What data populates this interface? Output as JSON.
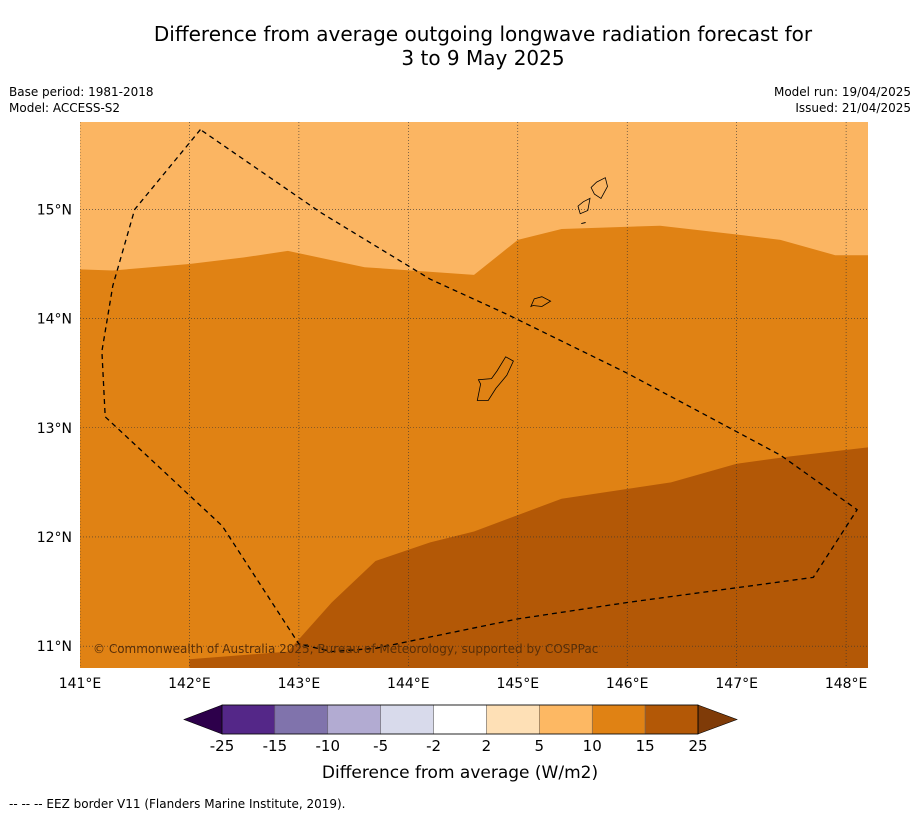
{
  "title_line1": "Difference from average outgoing longwave radiation forecast for",
  "title_line2": "3 to 9 May 2025",
  "meta_left": {
    "base_period": "Base period: 1981-2018",
    "model": "Model: ACCESS-S2"
  },
  "meta_right": {
    "model_run": "Model run: 19/04/2025",
    "issued": "Issued: 21/04/2025"
  },
  "map": {
    "lon_range": [
      141,
      148.2
    ],
    "lat_range": [
      10.8,
      15.8
    ],
    "lon_ticks": [
      141,
      142,
      143,
      144,
      145,
      146,
      147,
      148
    ],
    "lat_ticks": [
      11,
      12,
      13,
      14,
      15
    ],
    "lon_labels": [
      "141°E",
      "142°E",
      "143°E",
      "144°E",
      "145°E",
      "146°E",
      "147°E",
      "148°E"
    ],
    "lat_labels": [
      "11°N",
      "12°N",
      "13°N",
      "14°N",
      "15°N"
    ],
    "grid": true,
    "copyright": "© Commonwealth of Australia 2025, Bureau of Meteorology, supported by COSPPac",
    "fill_colors": {
      "5_to_10": "#fbb562",
      "10_to_15": "#e08214",
      "15_to_25": "#b35806"
    },
    "boundary_5_10": [
      [
        141,
        14.45
      ],
      [
        141.3,
        14.44
      ],
      [
        142,
        14.5
      ],
      [
        142.5,
        14.56
      ],
      [
        142.9,
        14.62
      ],
      [
        143.6,
        14.47
      ],
      [
        144.6,
        14.4
      ],
      [
        145,
        14.72
      ],
      [
        145.4,
        14.82
      ],
      [
        146.3,
        14.85
      ],
      [
        147,
        14.77
      ],
      [
        147.4,
        14.72
      ],
      [
        147.9,
        14.58
      ],
      [
        148.2,
        14.58
      ]
    ],
    "boundary_10_15": [
      [
        142,
        10.8
      ],
      [
        142,
        10.88
      ],
      [
        142.9,
        10.95
      ],
      [
        143.3,
        11.4
      ],
      [
        143.7,
        11.78
      ],
      [
        144.2,
        11.95
      ],
      [
        144.6,
        12.05
      ],
      [
        145,
        12.2
      ],
      [
        145.4,
        12.35
      ],
      [
        146.4,
        12.5
      ],
      [
        147,
        12.67
      ],
      [
        147.5,
        12.74
      ],
      [
        148.2,
        12.82
      ]
    ],
    "eez_border": [
      [
        142.1,
        15.73
      ],
      [
        141.5,
        15
      ],
      [
        141.3,
        14.3
      ],
      [
        141.2,
        13.7
      ],
      [
        141.23,
        13.1
      ],
      [
        142.3,
        12.1
      ],
      [
        143,
        11.02
      ],
      [
        143.3,
        10.95
      ],
      [
        143.7,
        10.98
      ],
      [
        145,
        11.25
      ],
      [
        146,
        11.4
      ],
      [
        147.7,
        11.63
      ],
      [
        148.1,
        12.25
      ],
      [
        147.4,
        12.75
      ],
      [
        146,
        13.5
      ],
      [
        144.9,
        14.04
      ],
      [
        144.2,
        14.36
      ],
      [
        143.2,
        14.97
      ],
      [
        142.1,
        15.73
      ]
    ],
    "islands": [
      [
        [
          145.72,
          15.25
        ],
        [
          145.8,
          15.29
        ],
        [
          145.82,
          15.21
        ],
        [
          145.76,
          15.1
        ],
        [
          145.7,
          15.14
        ],
        [
          145.67,
          15.2
        ]
      ],
      [
        [
          145.6,
          15.07
        ],
        [
          145.66,
          15.1
        ],
        [
          145.64,
          14.99
        ],
        [
          145.57,
          14.96
        ],
        [
          145.55,
          15.03
        ]
      ],
      [
        [
          145.15,
          14.18
        ],
        [
          145.22,
          14.2
        ],
        [
          145.3,
          14.16
        ],
        [
          145.22,
          14.11
        ],
        [
          145.14,
          14.12
        ],
        [
          145.12,
          14.11
        ]
      ],
      [
        [
          144.89,
          13.65
        ],
        [
          144.96,
          13.61
        ],
        [
          144.9,
          13.48
        ],
        [
          144.8,
          13.36
        ],
        [
          144.73,
          13.25
        ],
        [
          144.63,
          13.25
        ],
        [
          144.66,
          13.4
        ],
        [
          144.64,
          13.44
        ],
        [
          144.76,
          13.45
        ],
        [
          144.81,
          13.52
        ]
      ]
    ]
  },
  "colorbar": {
    "levels": [
      "-25",
      "-15",
      "-10",
      "-5",
      "-2",
      "2",
      "5",
      "10",
      "15",
      "25"
    ],
    "colors": [
      "#2d004b",
      "#542788",
      "#8073ac",
      "#b2abd2",
      "#d8daeb",
      "#ffffff",
      "#fee0b6",
      "#fdb863",
      "#e08214",
      "#b35806",
      "#7f3b08"
    ],
    "label": "Difference from average (W/m2)"
  },
  "footer": "--  --  -- EEZ border V11 (Flanders Marine Institute, 2019)."
}
